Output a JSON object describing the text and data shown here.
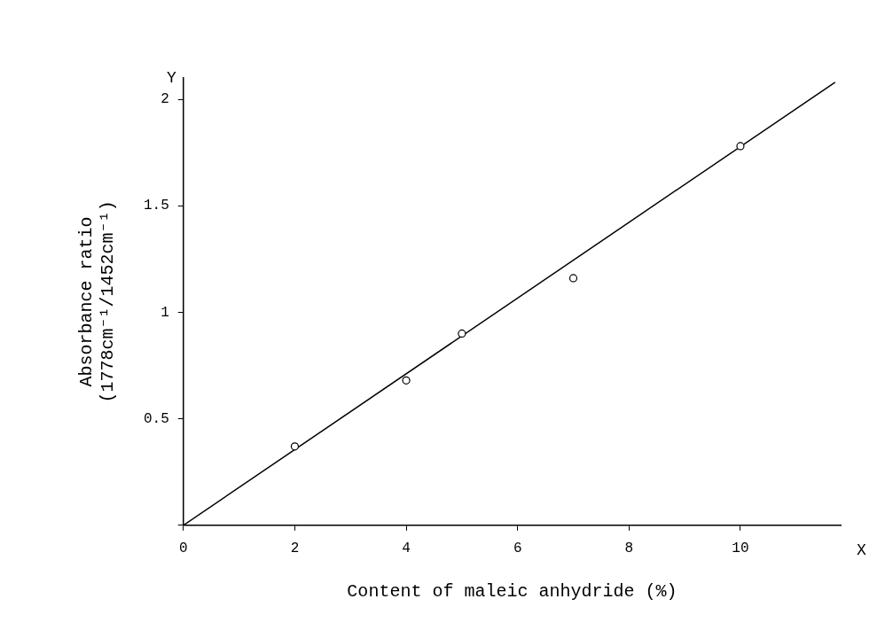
{
  "chart_data": {
    "type": "scatter",
    "xlabel": "Content of maleic anhydride (%)",
    "ylabel": "Absorbance ratio\n(1778cm⁻¹/1452cm⁻¹)",
    "annotations": [
      "X",
      "Y"
    ],
    "xlim": [
      0,
      11.8
    ],
    "ylim": [
      0,
      2.1
    ],
    "xticks": [
      0,
      2,
      4,
      6,
      8,
      10
    ],
    "yticks": [
      {
        "value": 0,
        "label": null
      },
      0.5,
      1,
      1.5,
      2
    ],
    "grid": false,
    "legend": false,
    "series": [
      {
        "marker": "circle",
        "color": "#000000",
        "x": [
          2,
          4,
          5,
          7,
          10
        ],
        "values": [
          0.37,
          0.68,
          0.9,
          1.16,
          1.78
        ]
      },
      {
        "type": "line",
        "marker": "none",
        "color": "#000000",
        "x": [
          0,
          11.7
        ],
        "values": [
          0,
          2.08
        ]
      }
    ]
  }
}
